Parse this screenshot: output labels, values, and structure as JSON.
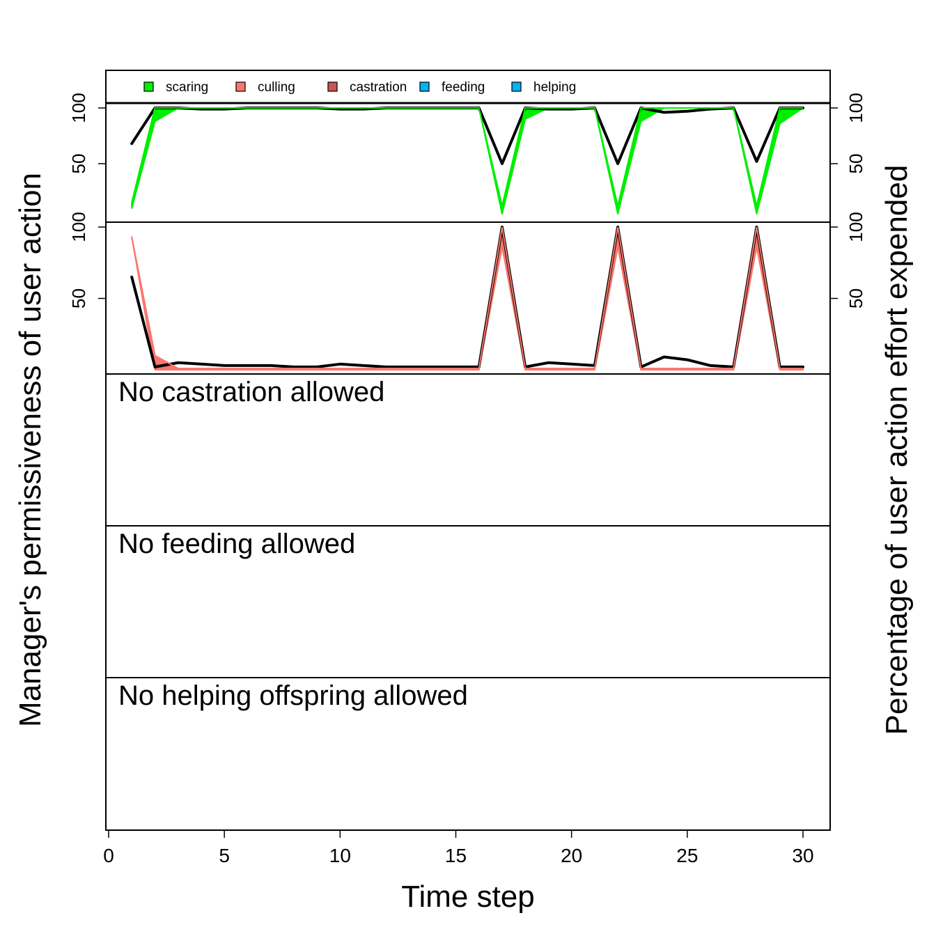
{
  "chart_data": {
    "type": "line",
    "xlabel": "Time step",
    "ylabel_left": "Manager's permissiveness of user action",
    "ylabel_right": "Percentage of user action effort expended",
    "xlim": [
      0,
      31
    ],
    "xticks": [
      "0",
      "5",
      "10",
      "15",
      "20",
      "25",
      "30"
    ],
    "legend": {
      "placement": "top",
      "entries": [
        {
          "label": "scaring",
          "color": "#00ee00"
        },
        {
          "label": "culling",
          "color": "#f8766d"
        },
        {
          "label": "castration",
          "color": "#cd5555"
        },
        {
          "label": "feeding",
          "color": "#00b2ee"
        },
        {
          "label": "helping",
          "color": "#00b2ee"
        }
      ]
    },
    "panels": [
      {
        "id": "scaring",
        "ylim": [
          0,
          100
        ],
        "yticks_left": [
          "50",
          "100"
        ],
        "yticks_right": [
          "50",
          "100"
        ],
        "note": "",
        "x": [
          1,
          2,
          3,
          4,
          5,
          6,
          7,
          8,
          9,
          10,
          11,
          12,
          13,
          14,
          15,
          16,
          17,
          18,
          19,
          20,
          21,
          22,
          23,
          24,
          25,
          26,
          27,
          28,
          29,
          30
        ],
        "series": [
          {
            "name": "Manager's permissiveness",
            "color": "#000000",
            "values": [
              68,
              100,
              100,
              99,
              99,
              100,
              100,
              100,
              100,
              99,
              99,
              100,
              100,
              100,
              100,
              100,
              50,
              100,
              99,
              99,
              100,
              50,
              100,
              96,
              97,
              99,
              100,
              52,
              100,
              100
            ]
          },
          {
            "name": "scaring",
            "color": "#00ee00",
            "values_low": [
              10,
              88,
              100,
              100,
              100,
              100,
              100,
              100,
              100,
              100,
              100,
              100,
              100,
              100,
              100,
              100,
              5,
              90,
              100,
              100,
              100,
              5,
              88,
              100,
              100,
              100,
              100,
              5,
              86,
              100
            ],
            "values_high": [
              15,
              100,
              100,
              100,
              100,
              100,
              100,
              100,
              100,
              100,
              100,
              100,
              100,
              100,
              100,
              100,
              12,
              100,
              100,
              100,
              100,
              12,
              100,
              100,
              100,
              100,
              100,
              12,
              100,
              100
            ]
          }
        ]
      },
      {
        "id": "culling",
        "ylim": [
          0,
          100
        ],
        "yticks_left": [
          "50",
          "100"
        ],
        "yticks_right": [
          "50",
          "100"
        ],
        "note": "",
        "x": [
          1,
          2,
          3,
          4,
          5,
          6,
          7,
          8,
          9,
          10,
          11,
          12,
          13,
          14,
          15,
          16,
          17,
          18,
          19,
          20,
          21,
          22,
          23,
          24,
          25,
          26,
          27,
          28,
          29,
          30
        ],
        "series": [
          {
            "name": "Manager's permissiveness",
            "color": "#000000",
            "values": [
              65,
              2,
              5,
              4,
              3,
              3,
              3,
              2,
              2,
              4,
              3,
              2,
              2,
              2,
              2,
              2,
              100,
              2,
              5,
              4,
              3,
              100,
              2,
              9,
              7,
              3,
              2,
              100,
              2,
              2
            ]
          },
          {
            "name": "culling",
            "color": "#f8766d",
            "values_low": [
              93,
              0,
              0,
              0,
              0,
              0,
              0,
              0,
              0,
              0,
              0,
              0,
              0,
              0,
              0,
              0,
              86,
              0,
              0,
              0,
              0,
              86,
              0,
              0,
              0,
              0,
              0,
              86,
              0,
              0
            ],
            "values_high": [
              93,
              10,
              1,
              1,
              1,
              1,
              1,
              1,
              1,
              1,
              1,
              1,
              1,
              1,
              1,
              1,
              100,
              1,
              1,
              1,
              1,
              100,
              1,
              1,
              1,
              1,
              1,
              100,
              1,
              1
            ]
          }
        ]
      },
      {
        "id": "castration",
        "note": "No castration allowed"
      },
      {
        "id": "feeding",
        "note": "No feeding allowed"
      },
      {
        "id": "helping",
        "note": "No helping offspring allowed"
      }
    ]
  }
}
